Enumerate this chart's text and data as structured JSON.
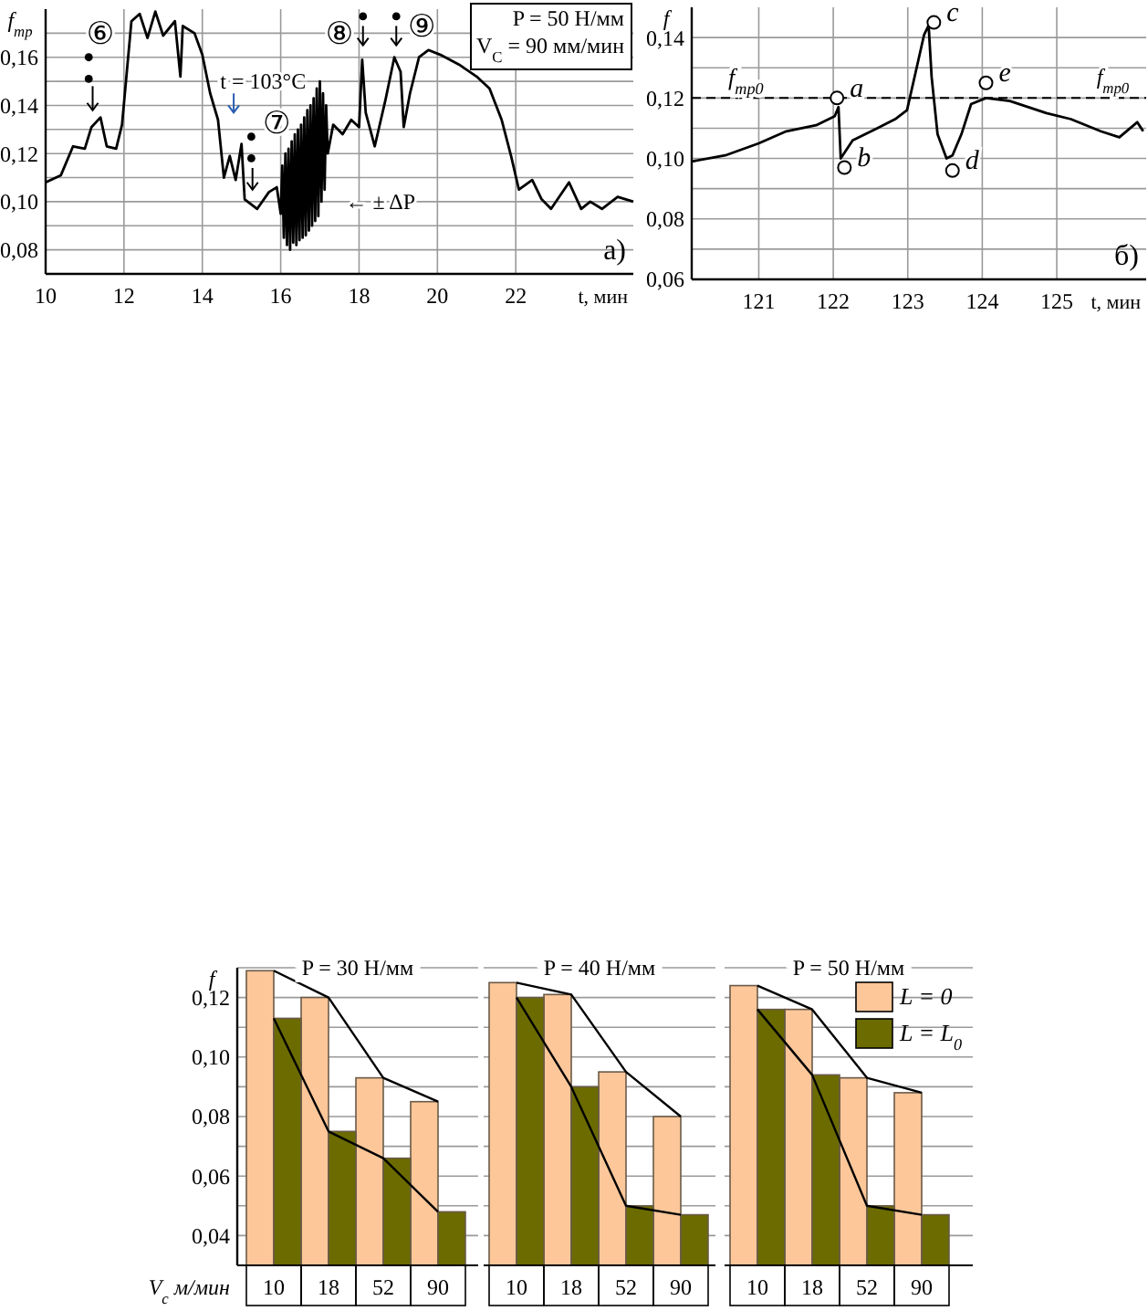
{
  "chart_data": [
    {
      "type": "line",
      "ylabel": "f$_{тр}$",
      "xlabel": "t, мин",
      "xlim": [
        10,
        25
      ],
      "ylim": [
        0.07,
        0.18
      ],
      "xticks": [
        10,
        12,
        14,
        16,
        18,
        20,
        22
      ],
      "yticks": [
        {
          "value": 0.08,
          "label": "0,08"
        },
        {
          "value": 0.09,
          "label": null
        },
        {
          "value": 0.1,
          "label": "0,10"
        },
        {
          "value": 0.11,
          "label": null
        },
        {
          "value": 0.12,
          "label": "0,12"
        },
        {
          "value": 0.13,
          "label": null
        },
        {
          "value": 0.14,
          "label": "0,14"
        },
        {
          "value": 0.15,
          "label": null
        },
        {
          "value": 0.16,
          "label": "0,16"
        },
        {
          "value": 0.17,
          "label": null
        }
      ],
      "grid": true,
      "legend": false,
      "series": [
        {
          "color": "#000000",
          "x": [
            10,
            10.39,
            10.7,
            11.0,
            11.17,
            11.4,
            11.56,
            11.8,
            11.95,
            12.19,
            12.4,
            12.6,
            12.8,
            13.0,
            13.3,
            13.44,
            13.5,
            13.8,
            14.0,
            14.2,
            14.4,
            14.55,
            14.7,
            14.85,
            15.0,
            15.08,
            15.4,
            15.7,
            15.9,
            16.0,
            16.04,
            16.08,
            16.12,
            16.16,
            16.2,
            16.24,
            16.28,
            16.32,
            16.36,
            16.4,
            16.44,
            16.48,
            16.52,
            16.56,
            16.6,
            16.64,
            16.68,
            16.72,
            16.76,
            16.8,
            16.84,
            16.88,
            16.92,
            16.96,
            17.0,
            17.04,
            17.08,
            17.12,
            17.16,
            17.2,
            17.34,
            17.58,
            17.8,
            18.0,
            18.08,
            18.17,
            18.4,
            18.67,
            18.9,
            19.06,
            19.14,
            19.3,
            19.53,
            19.77,
            20.08,
            20.55,
            21.0,
            21.33,
            21.64,
            21.88,
            22.08,
            22.42,
            22.66,
            22.9,
            23.36,
            23.67,
            23.9,
            24.2,
            24.6,
            25.0
          ],
          "values": [
            0.108,
            0.111,
            0.123,
            0.122,
            0.131,
            0.135,
            0.123,
            0.122,
            0.132,
            0.175,
            0.178,
            0.168,
            0.179,
            0.169,
            0.175,
            0.152,
            0.173,
            0.17,
            0.161,
            0.145,
            0.134,
            0.11,
            0.119,
            0.109,
            0.124,
            0.101,
            0.097,
            0.104,
            0.106,
            0.095,
            0.115,
            0.085,
            0.12,
            0.082,
            0.122,
            0.08,
            0.125,
            0.083,
            0.128,
            0.082,
            0.13,
            0.084,
            0.132,
            0.085,
            0.135,
            0.086,
            0.138,
            0.088,
            0.14,
            0.09,
            0.143,
            0.092,
            0.147,
            0.094,
            0.15,
            0.1,
            0.145,
            0.105,
            0.14,
            0.12,
            0.132,
            0.128,
            0.134,
            0.131,
            0.159,
            0.137,
            0.123,
            0.142,
            0.16,
            0.154,
            0.131,
            0.145,
            0.16,
            0.163,
            0.161,
            0.157,
            0.152,
            0.147,
            0.134,
            0.119,
            0.105,
            0.109,
            0.101,
            0.097,
            0.108,
            0.097,
            0.1,
            0.097,
            0.102,
            0.1
          ]
        }
      ],
      "annotations": [
        "⑥",
        "⑦",
        "⑧",
        "⑨",
        "t = 103°C",
        "← ± ΔP",
        "P = 50 Н/мм",
        "V$_{C}$ = 90 мм/мин",
        "а)"
      ]
    },
    {
      "type": "line",
      "ylabel": "f",
      "xlabel": "t, мин",
      "xlim": [
        120.1,
        126.2
      ],
      "ylim": [
        0.06,
        0.15
      ],
      "xticks": [
        121,
        122,
        123,
        124,
        125
      ],
      "yticks": [
        {
          "value": 0.06,
          "label": "0,06"
        },
        {
          "value": 0.07,
          "label": null
        },
        {
          "value": 0.08,
          "label": "0,08"
        },
        {
          "value": 0.09,
          "label": null
        },
        {
          "value": 0.1,
          "label": "0,10"
        },
        {
          "value": 0.11,
          "label": null
        },
        {
          "value": 0.12,
          "label": "0,12"
        },
        {
          "value": 0.13,
          "label": null
        },
        {
          "value": 0.14,
          "label": "0,14"
        }
      ],
      "grid": true,
      "legend": false,
      "series": [
        {
          "color": "#000000",
          "x": [
            120.1,
            120.55,
            121.0,
            121.37,
            121.77,
            122.02,
            122.07,
            122.1,
            122.26,
            122.59,
            122.83,
            122.99,
            123.11,
            123.22,
            123.28,
            123.32,
            123.4,
            123.52,
            123.6,
            123.72,
            123.85,
            124.05,
            124.37,
            124.86,
            125.19,
            125.59,
            125.84,
            126.08,
            126.16
          ],
          "values": [
            0.099,
            0.101,
            0.105,
            0.109,
            0.111,
            0.114,
            0.117,
            0.1,
            0.106,
            0.11,
            0.113,
            0.116,
            0.129,
            0.141,
            0.144,
            0.127,
            0.108,
            0.1,
            0.101,
            0.108,
            0.118,
            0.12,
            0.119,
            0.115,
            0.113,
            0.109,
            0.107,
            0.112,
            0.109
          ]
        },
        {
          "type": "scatter",
          "color": "#000000",
          "marker": "circle",
          "x": [
            122.05,
            122.15,
            123.35,
            123.6,
            124.05
          ],
          "values": [
            0.12,
            0.097,
            0.145,
            0.096,
            0.125
          ]
        }
      ],
      "ref_lines": [
        {
          "axis": "y",
          "value": 0.12,
          "label": "f$_{тр0}$",
          "line_style": "dashed",
          "color": "#000000"
        }
      ],
      "annotations": [
        {
          "text": "a",
          "x": 122.05,
          "y": 0.12
        },
        {
          "text": "b",
          "x": 122.15,
          "y": 0.097
        },
        {
          "text": "c",
          "x": 123.35,
          "y": 0.145
        },
        {
          "text": "d",
          "x": 123.6,
          "y": 0.096
        },
        {
          "text": "e",
          "x": 124.05,
          "y": 0.125
        },
        {
          "text": "f$_{тр0}$",
          "x": 125.85,
          "y": 0.12
        },
        "б)"
      ]
    },
    {
      "type": "bar",
      "title": "P = 30 Н/мм",
      "ylabel": "f",
      "xlabel": "V$_{c}$ м/мин",
      "categories": [
        "10",
        "18",
        "52",
        "90"
      ],
      "ylim": [
        0.03,
        0.13
      ],
      "yticks": [
        {
          "value": 0.04,
          "label": "0,04"
        },
        {
          "value": 0.05,
          "label": null
        },
        {
          "value": 0.06,
          "label": "0,06"
        },
        {
          "value": 0.07,
          "label": null
        },
        {
          "value": 0.08,
          "label": "0,08"
        },
        {
          "value": 0.09,
          "label": null
        },
        {
          "value": 0.1,
          "label": "0,10"
        },
        {
          "value": 0.11,
          "label": null
        },
        {
          "value": 0.12,
          "label": "0,12"
        },
        {
          "value": 0.13,
          "label": null
        }
      ],
      "grid": "y",
      "legend": false,
      "series": [
        {
          "color": "#fdc79a",
          "values": [
            0.129,
            0.12,
            0.093,
            0.085
          ]
        },
        {
          "color": "#6b6b00",
          "values": [
            0.113,
            0.075,
            0.066,
            0.048
          ]
        },
        {
          "type": "line",
          "color": "#000000",
          "values": [
            0.129,
            0.12,
            0.093,
            0.085
          ]
        },
        {
          "type": "line",
          "color": "#000000",
          "values": [
            0.113,
            0.075,
            0.066,
            0.048
          ]
        }
      ]
    },
    {
      "type": "bar",
      "title": "P = 40 Н/мм",
      "categories": [
        "10",
        "18",
        "52",
        "90"
      ],
      "ylim": [
        0.03,
        0.13
      ],
      "yticks": [
        0.04,
        0.05,
        0.06,
        0.07,
        0.08,
        0.09,
        0.1,
        0.11,
        0.12,
        0.13
      ],
      "grid": "y",
      "legend": false,
      "tick_labels": "x",
      "series": [
        {
          "color": "#fdc79a",
          "values": [
            0.125,
            0.121,
            0.095,
            0.08
          ]
        },
        {
          "color": "#6b6b00",
          "values": [
            0.12,
            0.09,
            0.05,
            0.047
          ]
        },
        {
          "type": "line",
          "color": "#000000",
          "values": [
            0.125,
            0.121,
            0.095,
            0.08
          ]
        },
        {
          "type": "line",
          "color": "#000000",
          "values": [
            0.12,
            0.09,
            0.05,
            0.047
          ]
        }
      ]
    },
    {
      "type": "bar",
      "title": "P = 50 Н/мм",
      "categories": [
        "10",
        "18",
        "52",
        "90"
      ],
      "ylim": [
        0.03,
        0.13
      ],
      "yticks": [
        0.04,
        0.05,
        0.06,
        0.07,
        0.08,
        0.09,
        0.1,
        0.11,
        0.12,
        0.13
      ],
      "grid": "y",
      "legend": "top right",
      "tick_labels": "x",
      "series": [
        {
          "name": "L = 0",
          "color": "#fdc79a",
          "values": [
            0.124,
            0.116,
            0.093,
            0.088
          ]
        },
        {
          "name": "L = L$_{0}$",
          "color": "#6b6b00",
          "values": [
            0.116,
            0.094,
            0.05,
            0.047
          ]
        },
        {
          "type": "line",
          "color": "#000000",
          "values": [
            0.124,
            0.116,
            0.093,
            0.088
          ]
        },
        {
          "type": "line",
          "color": "#000000",
          "values": [
            0.116,
            0.094,
            0.05,
            0.047
          ]
        }
      ]
    }
  ]
}
